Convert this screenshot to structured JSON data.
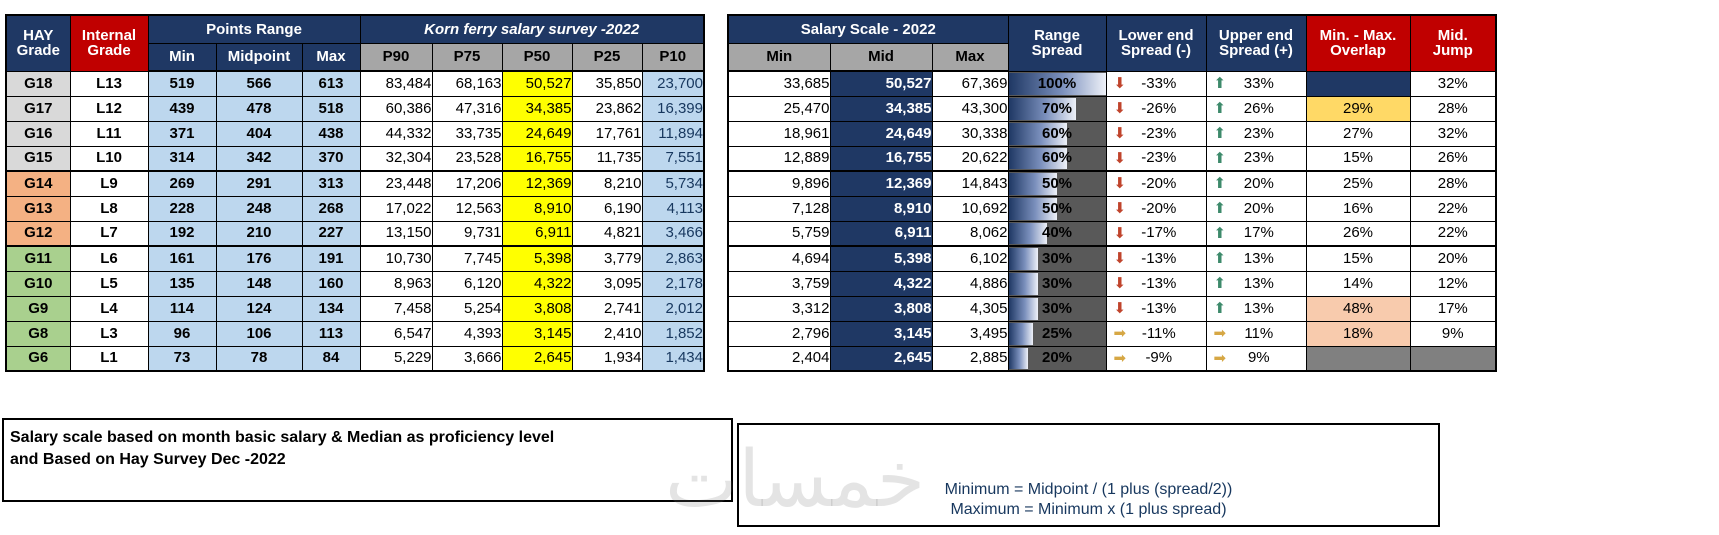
{
  "columns": {
    "hay": {
      "line1": "HAY",
      "line2": "Grade"
    },
    "internal": {
      "line1": "Internal",
      "line2": "Grade"
    },
    "points_range": {
      "title": "Points Range",
      "sub": [
        "Min",
        "Midpoint",
        "Max"
      ]
    },
    "korn_ferry": {
      "title": "Korn ferry salary survey -2022",
      "sub": [
        "P90",
        "P75",
        "P50",
        "P25",
        "P10"
      ]
    },
    "salary_scale": {
      "title": "Salary Scale - 2022",
      "sub": [
        "Min",
        "Mid",
        "Max"
      ]
    },
    "range_spread": {
      "line1": "Range",
      "line2": "Spread"
    },
    "lower_end": {
      "line1": "Lower end",
      "line2": "Spread (-)"
    },
    "upper_end": {
      "line1": "Upper end",
      "line2": "Spread (+)"
    },
    "overlap": {
      "line1": "Min. - Max.",
      "line2": "Overlap"
    },
    "mid_jump": {
      "line1": "Mid.",
      "line2": "Jump"
    }
  },
  "icons": {
    "down": "⬇",
    "up": "⬆",
    "right": "➡"
  },
  "rows": [
    {
      "hay": "G18",
      "internal": "L13",
      "group": "gray",
      "points": [
        "519",
        "566",
        "613"
      ],
      "survey": [
        "83,484",
        "68,163",
        "50,527",
        "35,850",
        "23,700"
      ],
      "salary": [
        "33,685",
        "50,527",
        "67,369"
      ],
      "spread": "100%",
      "spread_pct": 100,
      "lower": "-33%",
      "lower_icon": "down",
      "upper": "33%",
      "upper_icon": "up",
      "overlap": "",
      "overlap_style": "navy",
      "jump": "32%",
      "jump_style": "plain"
    },
    {
      "hay": "G17",
      "internal": "L12",
      "group": "gray",
      "points": [
        "439",
        "478",
        "518"
      ],
      "survey": [
        "60,386",
        "47,316",
        "34,385",
        "23,862",
        "16,399"
      ],
      "salary": [
        "25,470",
        "34,385",
        "43,300"
      ],
      "spread": "70%",
      "spread_pct": 70,
      "lower": "-26%",
      "lower_icon": "down",
      "upper": "26%",
      "upper_icon": "up",
      "overlap": "29%",
      "overlap_style": "gold",
      "jump": "28%",
      "jump_style": "plain"
    },
    {
      "hay": "G16",
      "internal": "L11",
      "group": "gray",
      "points": [
        "371",
        "404",
        "438"
      ],
      "survey": [
        "44,332",
        "33,735",
        "24,649",
        "17,761",
        "11,894"
      ],
      "salary": [
        "18,961",
        "24,649",
        "30,338"
      ],
      "spread": "60%",
      "spread_pct": 60,
      "lower": "-23%",
      "lower_icon": "down",
      "upper": "23%",
      "upper_icon": "up",
      "overlap": "27%",
      "overlap_style": "plain",
      "jump": "32%",
      "jump_style": "plain"
    },
    {
      "hay": "G15",
      "internal": "L10",
      "group": "gray",
      "points": [
        "314",
        "342",
        "370"
      ],
      "survey": [
        "32,304",
        "23,528",
        "16,755",
        "11,735",
        "7,551"
      ],
      "salary": [
        "12,889",
        "16,755",
        "20,622"
      ],
      "spread": "60%",
      "spread_pct": 60,
      "lower": "-23%",
      "lower_icon": "down",
      "upper": "23%",
      "upper_icon": "up",
      "overlap": "15%",
      "overlap_style": "plain",
      "jump": "26%",
      "jump_style": "plain"
    },
    {
      "hay": "G14",
      "internal": "L9",
      "group": "orange",
      "points": [
        "269",
        "291",
        "313"
      ],
      "survey": [
        "23,448",
        "17,206",
        "12,369",
        "8,210",
        "5,734"
      ],
      "salary": [
        "9,896",
        "12,369",
        "14,843"
      ],
      "spread": "50%",
      "spread_pct": 50,
      "lower": "-20%",
      "lower_icon": "down",
      "upper": "20%",
      "upper_icon": "up",
      "overlap": "25%",
      "overlap_style": "plain",
      "jump": "28%",
      "jump_style": "plain"
    },
    {
      "hay": "G13",
      "internal": "L8",
      "group": "orange",
      "points": [
        "228",
        "248",
        "268"
      ],
      "survey": [
        "17,022",
        "12,563",
        "8,910",
        "6,190",
        "4,113"
      ],
      "salary": [
        "7,128",
        "8,910",
        "10,692"
      ],
      "spread": "50%",
      "spread_pct": 50,
      "lower": "-20%",
      "lower_icon": "down",
      "upper": "20%",
      "upper_icon": "up",
      "overlap": "16%",
      "overlap_style": "plain",
      "jump": "22%",
      "jump_style": "plain"
    },
    {
      "hay": "G12",
      "internal": "L7",
      "group": "orange",
      "points": [
        "192",
        "210",
        "227"
      ],
      "survey": [
        "13,150",
        "9,731",
        "6,911",
        "4,821",
        "3,466"
      ],
      "salary": [
        "5,759",
        "6,911",
        "8,062"
      ],
      "spread": "40%",
      "spread_pct": 40,
      "lower": "-17%",
      "lower_icon": "down",
      "upper": "17%",
      "upper_icon": "up",
      "overlap": "26%",
      "overlap_style": "plain",
      "jump": "22%",
      "jump_style": "plain"
    },
    {
      "hay": "G11",
      "internal": "L6",
      "group": "green",
      "points": [
        "161",
        "176",
        "191"
      ],
      "survey": [
        "10,730",
        "7,745",
        "5,398",
        "3,779",
        "2,863"
      ],
      "salary": [
        "4,694",
        "5,398",
        "6,102"
      ],
      "spread": "30%",
      "spread_pct": 30,
      "lower": "-13%",
      "lower_icon": "down",
      "upper": "13%",
      "upper_icon": "up",
      "overlap": "15%",
      "overlap_style": "plain",
      "jump": "20%",
      "jump_style": "plain"
    },
    {
      "hay": "G10",
      "internal": "L5",
      "group": "green",
      "points": [
        "135",
        "148",
        "160"
      ],
      "survey": [
        "8,963",
        "6,120",
        "4,322",
        "3,095",
        "2,178"
      ],
      "salary": [
        "3,759",
        "4,322",
        "4,886"
      ],
      "spread": "30%",
      "spread_pct": 30,
      "lower": "-13%",
      "lower_icon": "down",
      "upper": "13%",
      "upper_icon": "up",
      "overlap": "14%",
      "overlap_style": "plain",
      "jump": "12%",
      "jump_style": "plain"
    },
    {
      "hay": "G9",
      "internal": "L4",
      "group": "green",
      "points": [
        "114",
        "124",
        "134"
      ],
      "survey": [
        "7,458",
        "5,254",
        "3,808",
        "2,741",
        "2,012"
      ],
      "salary": [
        "3,312",
        "3,808",
        "4,305"
      ],
      "spread": "30%",
      "spread_pct": 30,
      "lower": "-13%",
      "lower_icon": "down",
      "upper": "13%",
      "upper_icon": "up",
      "overlap": "48%",
      "overlap_style": "peach",
      "jump": "17%",
      "jump_style": "plain"
    },
    {
      "hay": "G8",
      "internal": "L3",
      "group": "green",
      "points": [
        "96",
        "106",
        "113"
      ],
      "survey": [
        "6,547",
        "4,393",
        "3,145",
        "2,410",
        "1,852"
      ],
      "salary": [
        "2,796",
        "3,145",
        "3,495"
      ],
      "spread": "25%",
      "spread_pct": 25,
      "lower": "-11%",
      "lower_icon": "right",
      "upper": "11%",
      "upper_icon": "right",
      "overlap": "18%",
      "overlap_style": "peach",
      "jump": "9%",
      "jump_style": "plain"
    },
    {
      "hay": "G6",
      "internal": "L1",
      "group": "green",
      "points": [
        "73",
        "78",
        "84"
      ],
      "survey": [
        "5,229",
        "3,666",
        "2,645",
        "1,934",
        "1,434"
      ],
      "salary": [
        "2,404",
        "2,645",
        "2,885"
      ],
      "spread": "20%",
      "spread_pct": 20,
      "lower": "-9%",
      "lower_icon": "right",
      "upper": "9%",
      "upper_icon": "right",
      "overlap": "",
      "overlap_style": "dim",
      "jump": "",
      "jump_style": "dim"
    }
  ],
  "notes": {
    "line1": "Salary scale based on month basic salary & Median as proficiency level",
    "line2": " and Based on Hay Survey Dec -2022"
  },
  "formulas": {
    "minimum": "Minimum = Midpoint / (1 plus (spread/2))",
    "maximum": "Maximum = Minimum x (1 plus  spread)"
  },
  "watermark": "خمسات",
  "colors": {
    "navy": "#1F3864",
    "red": "#C00000",
    "header_gray": "#A6A6A6",
    "light_blue": "#BDD7EE",
    "p50_yellow": "#FFFF00",
    "overlap_gold": "#FFD966",
    "overlap_peach": "#F8CBAD",
    "row_gray": "#D9D9D9",
    "row_orange": "#F4B183",
    "row_green": "#A9D08E",
    "spread_bg_gray": "#595959",
    "disabled_gray": "#808080",
    "down_arrow": "#C0442C",
    "up_arrow": "#3D8A6B",
    "right_arrow": "#D6A744"
  }
}
